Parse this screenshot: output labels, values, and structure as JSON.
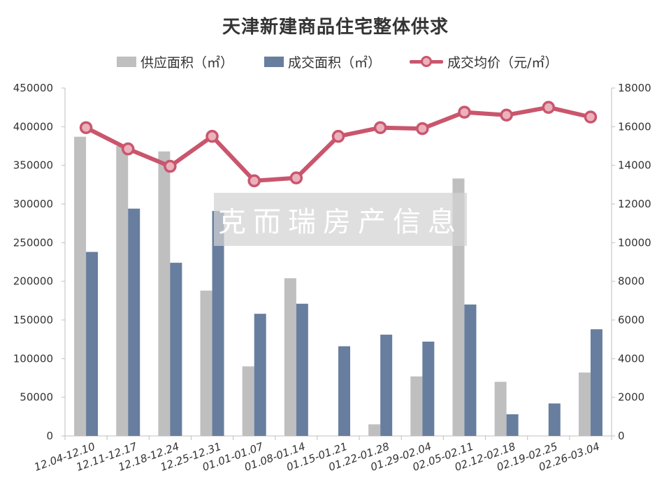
{
  "chart_data": {
    "type": "bar",
    "title": "天津新建商品住宅整体供求",
    "categories": [
      "12.04-12.10",
      "12.11-12.17",
      "12.18-12.24",
      "12.25-12.31",
      "01.01-01.07",
      "01.08-01.14",
      "01.15-01.21",
      "01.22-01.28",
      "01.29-02.04",
      "02.05-02.11",
      "02.12-02.18",
      "02.19-02.25",
      "02.26-03.04"
    ],
    "series": [
      {
        "name": "供应面积（㎡）",
        "type": "bar",
        "axis": "left",
        "color": "#BFBFBF",
        "values": [
          387000,
          375000,
          368000,
          188000,
          90000,
          204000,
          0,
          15000,
          77000,
          333000,
          70000,
          0,
          82000
        ]
      },
      {
        "name": "成交面积（㎡）",
        "type": "bar",
        "axis": "left",
        "color": "#687E9E",
        "values": [
          238000,
          294000,
          224000,
          291000,
          158000,
          171000,
          116000,
          131000,
          122000,
          170000,
          28000,
          42000,
          138000
        ]
      },
      {
        "name": "成交均价（元/㎡）",
        "type": "line",
        "axis": "right",
        "color": "#C9566D",
        "values": [
          15950,
          14850,
          13950,
          15500,
          13200,
          13350,
          15500,
          15950,
          15900,
          16750,
          16600,
          17000,
          16500
        ]
      }
    ],
    "y_left": {
      "min": 0,
      "max": 450000,
      "step": 50000,
      "ticks": [
        "0",
        "50000",
        "100000",
        "150000",
        "200000",
        "250000",
        "300000",
        "350000",
        "400000",
        "450000"
      ]
    },
    "y_right": {
      "min": 0,
      "max": 18000,
      "step": 2000,
      "ticks": [
        "0",
        "2000",
        "4000",
        "6000",
        "8000",
        "10000",
        "12000",
        "14000",
        "16000",
        "18000"
      ]
    },
    "grid": false,
    "legend_position": "top"
  },
  "watermark": "克而瑞房产信息"
}
